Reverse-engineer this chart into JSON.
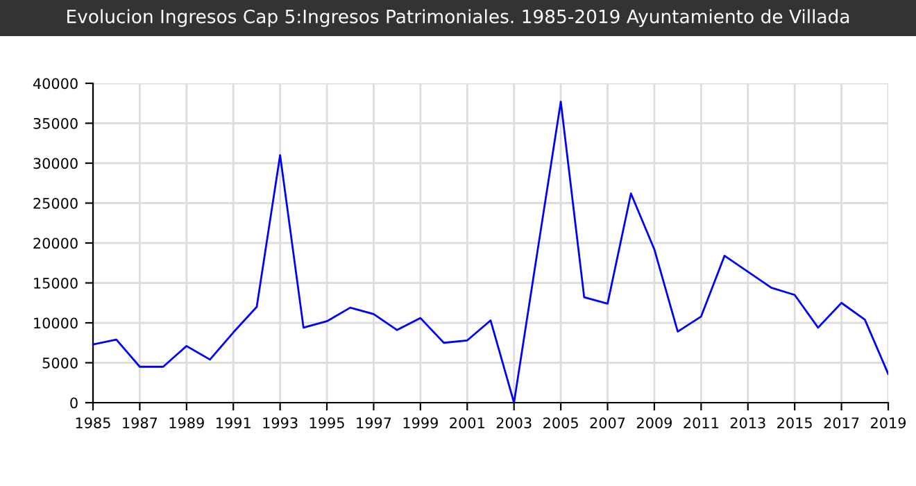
{
  "chart_data": {
    "type": "line",
    "title": "Evolucion Ingresos Cap 5:Ingresos Patrimoniales. 1985-2019 Ayuntamiento de Villada",
    "x": [
      1985,
      1986,
      1987,
      1988,
      1989,
      1990,
      1991,
      1992,
      1993,
      1994,
      1995,
      1996,
      1997,
      1998,
      1999,
      2000,
      2001,
      2002,
      2003,
      2004,
      2005,
      2006,
      2007,
      2008,
      2009,
      2010,
      2011,
      2012,
      2013,
      2014,
      2015,
      2016,
      2017,
      2018,
      2019
    ],
    "series": [
      {
        "color": "#0000ff",
        "values": [
          7300,
          7900,
          4500,
          4500,
          7100,
          5400,
          8800,
          12000,
          31000,
          9400,
          10200,
          11900,
          11100,
          9100,
          10600,
          7500,
          7800,
          10300,
          0,
          18900,
          37700,
          13200,
          12400,
          26200,
          19200,
          8900,
          10800,
          18400,
          16400,
          14400,
          13500,
          9400,
          12500,
          10400,
          3600
        ]
      }
    ],
    "xlim": [
      1985,
      2019
    ],
    "xticks": [
      1985,
      1987,
      1989,
      1991,
      1993,
      1995,
      1997,
      1999,
      2001,
      2003,
      2005,
      2007,
      2009,
      2011,
      2013,
      2015,
      2017,
      2019
    ],
    "ylim": [
      0,
      40000
    ],
    "yticks": [
      0,
      5000,
      10000,
      15000,
      20000,
      25000,
      30000,
      35000,
      40000
    ],
    "grid": true,
    "marker": "none",
    "line_style": "solid"
  }
}
